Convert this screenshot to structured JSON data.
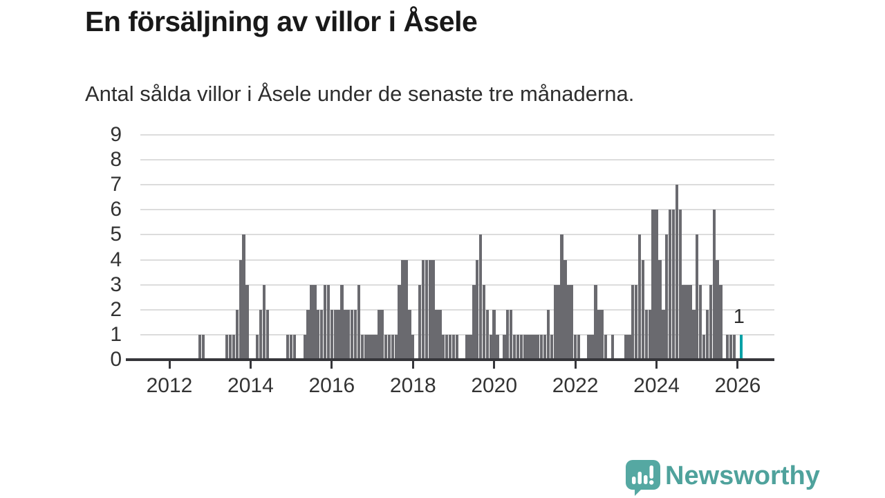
{
  "header": {
    "title": "En försäljning av villor i Åsele",
    "subtitle": "Antal sålda villor i Åsele under de senaste tre månaderna."
  },
  "chart_data": {
    "type": "bar",
    "title": "En försäljning av villor i Åsele",
    "subtitle": "Antal sålda villor i Åsele under de senaste tre månaderna.",
    "ylim": [
      0,
      9
    ],
    "yticks": [
      0,
      1,
      2,
      3,
      4,
      5,
      6,
      7,
      8,
      9
    ],
    "xticks": [
      "2012",
      "2014",
      "2016",
      "2018",
      "2020",
      "2022",
      "2024",
      "2026"
    ],
    "grid": "horizontal",
    "bar_color": "#6a6a6f",
    "highlight_color": "#00a1a6",
    "series": [
      {
        "date": "2012-10",
        "value": 1
      },
      {
        "date": "2012-11",
        "value": 1
      },
      {
        "date": "2013-06",
        "value": 1
      },
      {
        "date": "2013-07",
        "value": 1
      },
      {
        "date": "2013-08",
        "value": 1
      },
      {
        "date": "2013-09",
        "value": 2
      },
      {
        "date": "2013-10",
        "value": 4
      },
      {
        "date": "2013-11",
        "value": 5
      },
      {
        "date": "2013-12",
        "value": 3
      },
      {
        "date": "2014-03",
        "value": 1
      },
      {
        "date": "2014-04",
        "value": 2
      },
      {
        "date": "2014-05",
        "value": 3
      },
      {
        "date": "2014-06",
        "value": 2
      },
      {
        "date": "2014-12",
        "value": 1
      },
      {
        "date": "2015-01",
        "value": 1
      },
      {
        "date": "2015-02",
        "value": 1
      },
      {
        "date": "2015-05",
        "value": 1
      },
      {
        "date": "2015-06",
        "value": 2
      },
      {
        "date": "2015-07",
        "value": 3
      },
      {
        "date": "2015-08",
        "value": 3
      },
      {
        "date": "2015-09",
        "value": 2
      },
      {
        "date": "2015-10",
        "value": 2
      },
      {
        "date": "2015-11",
        "value": 3
      },
      {
        "date": "2015-12",
        "value": 3
      },
      {
        "date": "2016-01",
        "value": 2
      },
      {
        "date": "2016-02",
        "value": 2
      },
      {
        "date": "2016-03",
        "value": 2
      },
      {
        "date": "2016-04",
        "value": 3
      },
      {
        "date": "2016-05",
        "value": 2
      },
      {
        "date": "2016-06",
        "value": 2
      },
      {
        "date": "2016-07",
        "value": 2
      },
      {
        "date": "2016-08",
        "value": 2
      },
      {
        "date": "2016-09",
        "value": 3
      },
      {
        "date": "2016-10",
        "value": 1
      },
      {
        "date": "2016-11",
        "value": 1
      },
      {
        "date": "2016-12",
        "value": 1
      },
      {
        "date": "2017-01",
        "value": 1
      },
      {
        "date": "2017-02",
        "value": 1
      },
      {
        "date": "2017-03",
        "value": 2
      },
      {
        "date": "2017-04",
        "value": 2
      },
      {
        "date": "2017-05",
        "value": 1
      },
      {
        "date": "2017-06",
        "value": 1
      },
      {
        "date": "2017-07",
        "value": 1
      },
      {
        "date": "2017-08",
        "value": 1
      },
      {
        "date": "2017-09",
        "value": 3
      },
      {
        "date": "2017-10",
        "value": 4
      },
      {
        "date": "2017-11",
        "value": 4
      },
      {
        "date": "2017-12",
        "value": 2
      },
      {
        "date": "2018-01",
        "value": 1
      },
      {
        "date": "2018-03",
        "value": 3
      },
      {
        "date": "2018-04",
        "value": 4
      },
      {
        "date": "2018-05",
        "value": 4
      },
      {
        "date": "2018-06",
        "value": 4
      },
      {
        "date": "2018-07",
        "value": 4
      },
      {
        "date": "2018-08",
        "value": 2
      },
      {
        "date": "2018-09",
        "value": 2
      },
      {
        "date": "2018-10",
        "value": 1
      },
      {
        "date": "2018-11",
        "value": 1
      },
      {
        "date": "2018-12",
        "value": 1
      },
      {
        "date": "2019-01",
        "value": 1
      },
      {
        "date": "2019-02",
        "value": 1
      },
      {
        "date": "2019-05",
        "value": 1
      },
      {
        "date": "2019-06",
        "value": 1
      },
      {
        "date": "2019-07",
        "value": 3
      },
      {
        "date": "2019-08",
        "value": 4
      },
      {
        "date": "2019-09",
        "value": 5
      },
      {
        "date": "2019-10",
        "value": 3
      },
      {
        "date": "2019-11",
        "value": 2
      },
      {
        "date": "2019-12",
        "value": 1
      },
      {
        "date": "2020-01",
        "value": 2
      },
      {
        "date": "2020-02",
        "value": 1
      },
      {
        "date": "2020-04",
        "value": 1
      },
      {
        "date": "2020-05",
        "value": 2
      },
      {
        "date": "2020-06",
        "value": 2
      },
      {
        "date": "2020-07",
        "value": 1
      },
      {
        "date": "2020-08",
        "value": 1
      },
      {
        "date": "2020-09",
        "value": 1
      },
      {
        "date": "2020-10",
        "value": 1
      },
      {
        "date": "2020-11",
        "value": 1
      },
      {
        "date": "2020-12",
        "value": 1
      },
      {
        "date": "2021-01",
        "value": 1
      },
      {
        "date": "2021-02",
        "value": 1
      },
      {
        "date": "2021-03",
        "value": 1
      },
      {
        "date": "2021-04",
        "value": 1
      },
      {
        "date": "2021-05",
        "value": 2
      },
      {
        "date": "2021-06",
        "value": 1
      },
      {
        "date": "2021-07",
        "value": 3
      },
      {
        "date": "2021-08",
        "value": 3
      },
      {
        "date": "2021-09",
        "value": 5
      },
      {
        "date": "2021-10",
        "value": 4
      },
      {
        "date": "2021-11",
        "value": 3
      },
      {
        "date": "2021-12",
        "value": 3
      },
      {
        "date": "2022-01",
        "value": 1
      },
      {
        "date": "2022-02",
        "value": 1
      },
      {
        "date": "2022-05",
        "value": 1
      },
      {
        "date": "2022-06",
        "value": 1
      },
      {
        "date": "2022-07",
        "value": 3
      },
      {
        "date": "2022-08",
        "value": 2
      },
      {
        "date": "2022-09",
        "value": 2
      },
      {
        "date": "2022-10",
        "value": 1
      },
      {
        "date": "2022-12",
        "value": 1
      },
      {
        "date": "2023-04",
        "value": 1
      },
      {
        "date": "2023-05",
        "value": 1
      },
      {
        "date": "2023-06",
        "value": 3
      },
      {
        "date": "2023-07",
        "value": 3
      },
      {
        "date": "2023-08",
        "value": 5
      },
      {
        "date": "2023-09",
        "value": 4
      },
      {
        "date": "2023-10",
        "value": 2
      },
      {
        "date": "2023-11",
        "value": 2
      },
      {
        "date": "2023-12",
        "value": 6
      },
      {
        "date": "2024-01",
        "value": 6
      },
      {
        "date": "2024-02",
        "value": 4
      },
      {
        "date": "2024-03",
        "value": 2
      },
      {
        "date": "2024-04",
        "value": 5
      },
      {
        "date": "2024-05",
        "value": 6
      },
      {
        "date": "2024-06",
        "value": 6
      },
      {
        "date": "2024-07",
        "value": 7
      },
      {
        "date": "2024-08",
        "value": 6
      },
      {
        "date": "2024-09",
        "value": 3
      },
      {
        "date": "2024-10",
        "value": 3
      },
      {
        "date": "2024-11",
        "value": 3
      },
      {
        "date": "2024-12",
        "value": 2
      },
      {
        "date": "2025-01",
        "value": 5
      },
      {
        "date": "2025-02",
        "value": 3
      },
      {
        "date": "2025-03",
        "value": 1
      },
      {
        "date": "2025-04",
        "value": 2
      },
      {
        "date": "2025-05",
        "value": 3
      },
      {
        "date": "2025-06",
        "value": 6
      },
      {
        "date": "2025-07",
        "value": 4
      },
      {
        "date": "2025-08",
        "value": 3
      },
      {
        "date": "2025-10",
        "value": 1
      },
      {
        "date": "2025-11",
        "value": 1
      },
      {
        "date": "2025-12",
        "value": 1
      }
    ],
    "highlight": {
      "date": "2026-02",
      "value": 1,
      "label": "1"
    }
  },
  "footer": {
    "brand": "Newsworthy",
    "logo_icon": "bar-chart-speech-bubble-icon",
    "brand_color": "#4fa29c"
  }
}
